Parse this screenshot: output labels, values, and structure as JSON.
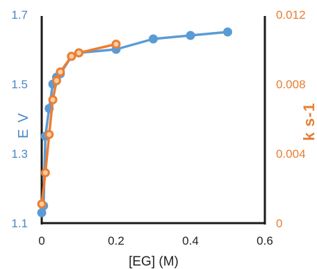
{
  "chart_data": {
    "type": "line",
    "xlabel": "[EG] (M)",
    "ylabel_left": "E V",
    "ylabel_right": "k s-1",
    "x_ticks": [
      "0",
      "0.2",
      "0.4",
      "0.6"
    ],
    "y_left_ticks": [
      "1.1",
      "1.3",
      "1.5",
      "1.7"
    ],
    "y_right_ticks": [
      "0",
      "0.004",
      "0.008",
      "0.012"
    ],
    "xlim": [
      0,
      0.6
    ],
    "ylim_left": [
      1.1,
      1.7
    ],
    "ylim_right": [
      0,
      0.012
    ],
    "grid": false,
    "series": [
      {
        "axis": "left",
        "color": "#5b9bd5",
        "marker": "filled-circle",
        "x": [
          0,
          0.005,
          0.01,
          0.02,
          0.03,
          0.04,
          0.05,
          0.08,
          0.1,
          0.2,
          0.3,
          0.4,
          0.5
        ],
        "y": [
          1.13,
          1.15,
          1.35,
          1.43,
          1.5,
          1.52,
          1.53,
          1.58,
          1.59,
          1.6,
          1.63,
          1.64,
          1.65
        ]
      },
      {
        "axis": "right",
        "color": "#ed7d31",
        "marker": "open-circle",
        "x": [
          0,
          0.01,
          0.02,
          0.03,
          0.04,
          0.05,
          0.08,
          0.1,
          0.2
        ],
        "y": [
          0.0011,
          0.0029,
          0.0051,
          0.0071,
          0.0082,
          0.0087,
          0.0096,
          0.0098,
          0.0103
        ]
      }
    ]
  }
}
